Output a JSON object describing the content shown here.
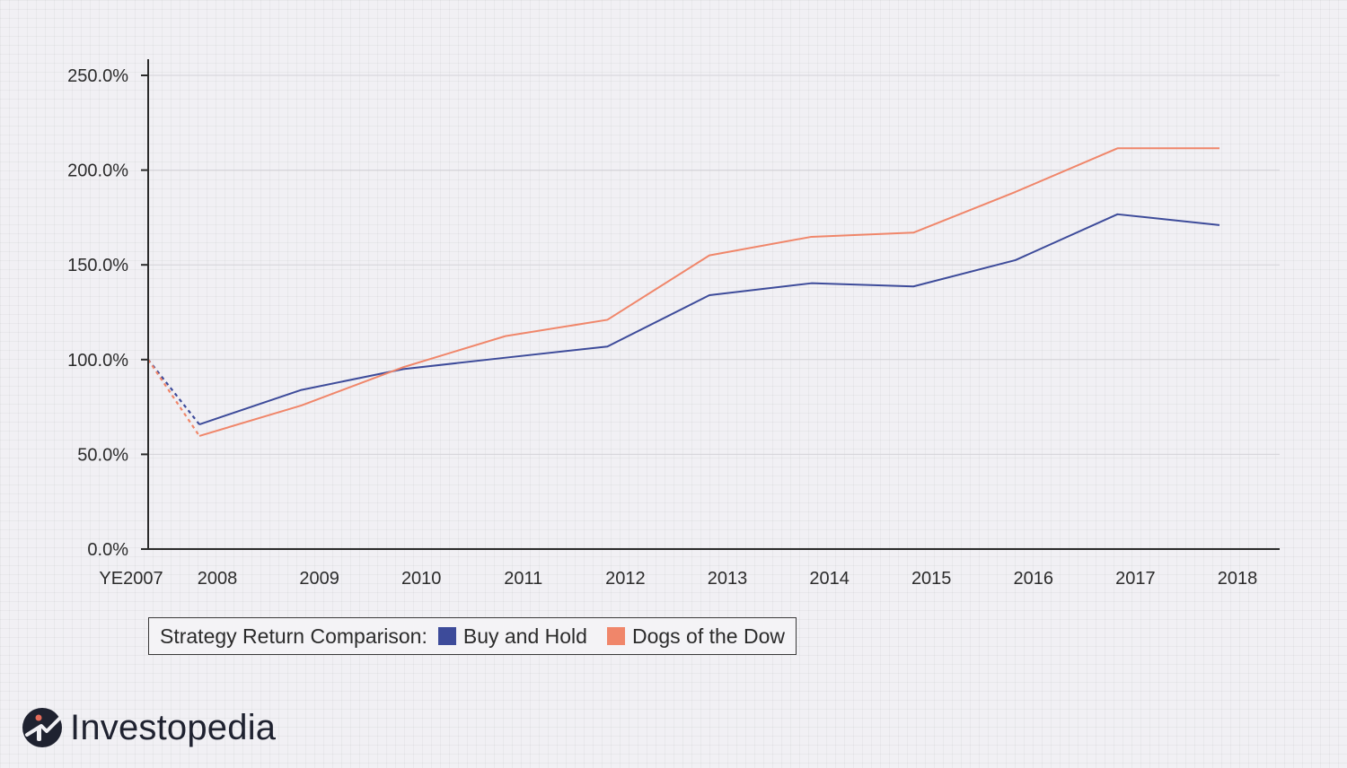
{
  "chart_data": {
    "type": "line",
    "categories": [
      "YE2007",
      "2008",
      "2009",
      "2010",
      "2011",
      "2012",
      "2013",
      "2014",
      "2015",
      "2016",
      "2017",
      "2018"
    ],
    "series": [
      {
        "name": "Buy and Hold",
        "color": "#3d4b9a",
        "values": [
          100.0,
          65.8,
          84.0,
          95.0,
          101.0,
          106.9,
          134.0,
          140.3,
          138.6,
          152.5,
          176.7,
          171.0
        ]
      },
      {
        "name": "Dogs of the Dow",
        "color": "#f0866a",
        "values": [
          100.0,
          59.7,
          75.8,
          96.0,
          112.4,
          121.0,
          155.0,
          164.8,
          167.0,
          188.5,
          211.5,
          211.5
        ]
      }
    ],
    "first_segment_style": "dashed",
    "yticks": [
      "0.0%",
      "50.0%",
      "100.0%",
      "150.0%",
      "200.0%",
      "250.0%"
    ],
    "ylim": [
      0,
      250
    ],
    "grid": "horizontal",
    "legend_title": "Strategy Return Comparison:",
    "legend_position": "bottom-left"
  },
  "brand": {
    "name": "Investopedia",
    "logo_icon": "investopedia-logo-icon",
    "logo_color": "#1f2230"
  }
}
